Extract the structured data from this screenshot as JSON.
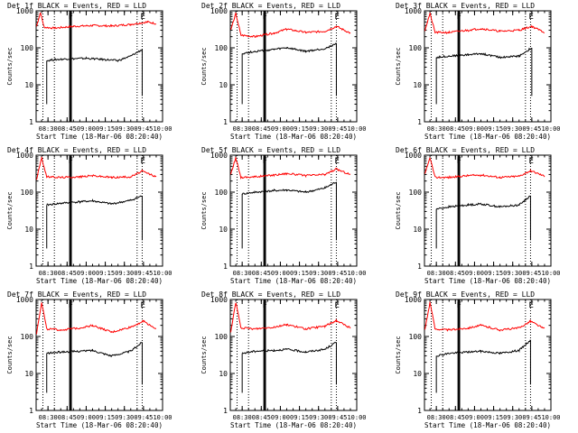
{
  "chart_data": [
    {
      "type": "line",
      "title": "Det 1f BLACK = Events, RED = LLD",
      "xlabel": "Start Time (18-Mar-06 08:20:40)",
      "ylabel": "Counts/sec",
      "y_scale": "log",
      "ylim": [
        1,
        1000
      ],
      "x_ticks": [
        "08:30",
        "08:45",
        "09:00",
        "09:15",
        "09:30",
        "09:45",
        "10:00"
      ],
      "y_ticks": [
        "1",
        "10",
        "100",
        "1000"
      ],
      "markers": [
        "F",
        "E"
      ],
      "series": [
        {
          "color": "#ff0000",
          "points": [
            [
              "08:21",
              380
            ],
            [
              "08:24",
              900
            ],
            [
              "08:27",
              360
            ],
            [
              "08:35",
              340
            ],
            [
              "08:50",
              380
            ],
            [
              "09:05",
              400
            ],
            [
              "09:20",
              390
            ],
            [
              "09:35",
              430
            ],
            [
              "09:48",
              500
            ],
            [
              "09:55",
              450
            ]
          ]
        },
        {
          "color": "#000000",
          "points": [
            [
              "08:29",
              45
            ],
            [
              "08:35",
              48
            ],
            [
              "08:45",
              50
            ],
            [
              "09:00",
              52
            ],
            [
              "09:15",
              48
            ],
            [
              "09:25",
              45
            ],
            [
              "09:35",
              60
            ],
            [
              "09:44",
              90
            ]
          ]
        }
      ]
    },
    {
      "type": "line",
      "title": "Det 2f BLACK = Events, RED = LLD",
      "xlabel": "Start Time (18-Mar-06 08:20:40)",
      "ylabel": "Counts/sec",
      "y_scale": "log",
      "ylim": [
        1,
        1000
      ],
      "x_ticks": [
        "08:30",
        "08:45",
        "09:00",
        "09:15",
        "09:30",
        "09:45",
        "10:00"
      ],
      "y_ticks": [
        "1",
        "10",
        "100",
        "1000"
      ],
      "markers": [
        "F",
        "E"
      ],
      "series": [
        {
          "color": "#ff0000",
          "points": [
            [
              "08:21",
              300
            ],
            [
              "08:25",
              850
            ],
            [
              "08:29",
              220
            ],
            [
              "08:40",
              200
            ],
            [
              "08:55",
              250
            ],
            [
              "09:05",
              320
            ],
            [
              "09:20",
              260
            ],
            [
              "09:35",
              280
            ],
            [
              "09:44",
              380
            ],
            [
              "09:55",
              250
            ]
          ]
        },
        {
          "color": "#000000",
          "points": [
            [
              "08:30",
              70
            ],
            [
              "08:40",
              80
            ],
            [
              "08:55",
              90
            ],
            [
              "09:05",
              100
            ],
            [
              "09:20",
              80
            ],
            [
              "09:35",
              95
            ],
            [
              "09:44",
              130
            ]
          ]
        }
      ]
    },
    {
      "type": "line",
      "title": "Det 3f BLACK = Events, RED = LLD",
      "xlabel": "Start Time (18-Mar-06 08:20:40)",
      "ylabel": "Counts/sec",
      "y_scale": "log",
      "ylim": [
        1,
        1000
      ],
      "x_ticks": [
        "08:30",
        "08:45",
        "09:00",
        "09:15",
        "09:30",
        "09:45",
        "10:00"
      ],
      "y_ticks": [
        "1",
        "10",
        "100",
        "1000"
      ],
      "markers": [
        "F",
        "E"
      ],
      "series": [
        {
          "color": "#ff0000",
          "points": [
            [
              "08:21",
              300
            ],
            [
              "08:25",
              850
            ],
            [
              "08:29",
              260
            ],
            [
              "08:40",
              260
            ],
            [
              "08:55",
              300
            ],
            [
              "09:05",
              330
            ],
            [
              "09:20",
              280
            ],
            [
              "09:35",
              300
            ],
            [
              "09:45",
              380
            ],
            [
              "09:55",
              260
            ]
          ]
        },
        {
          "color": "#000000",
          "points": [
            [
              "08:30",
              55
            ],
            [
              "08:40",
              60
            ],
            [
              "08:55",
              65
            ],
            [
              "09:05",
              70
            ],
            [
              "09:20",
              55
            ],
            [
              "09:35",
              60
            ],
            [
              "09:45",
              100
            ]
          ]
        }
      ]
    },
    {
      "type": "line",
      "title": "Det 4f BLACK = Events, RED = LLD",
      "xlabel": "Start Time (18-Mar-06 08:20:40)",
      "ylabel": "Counts/sec",
      "y_scale": "log",
      "ylim": [
        1,
        1000
      ],
      "x_ticks": [
        "08:30",
        "08:45",
        "09:00",
        "09:15",
        "09:30",
        "09:45",
        "10:00"
      ],
      "y_ticks": [
        "1",
        "10",
        "100",
        "1000"
      ],
      "markers": [
        "F",
        "E"
      ],
      "series": [
        {
          "color": "#ff0000",
          "points": [
            [
              "08:21",
              220
            ],
            [
              "08:25",
              850
            ],
            [
              "08:29",
              260
            ],
            [
              "08:40",
              250
            ],
            [
              "08:55",
              260
            ],
            [
              "09:05",
              280
            ],
            [
              "09:20",
              250
            ],
            [
              "09:35",
              260
            ],
            [
              "09:44",
              370
            ],
            [
              "09:55",
              260
            ]
          ]
        },
        {
          "color": "#000000",
          "points": [
            [
              "08:29",
              45
            ],
            [
              "08:40",
              50
            ],
            [
              "08:55",
              55
            ],
            [
              "09:05",
              58
            ],
            [
              "09:20",
              48
            ],
            [
              "09:35",
              60
            ],
            [
              "09:44",
              80
            ]
          ]
        }
      ]
    },
    {
      "type": "line",
      "title": "Det 5f BLACK = Events, RED = LLD",
      "xlabel": "Start Time (18-Mar-06 08:20:40)",
      "ylabel": "Counts/sec",
      "y_scale": "log",
      "ylim": [
        1,
        1000
      ],
      "x_ticks": [
        "08:30",
        "08:45",
        "09:00",
        "09:15",
        "09:30",
        "09:45",
        "10:00"
      ],
      "y_ticks": [
        "1",
        "10",
        "100",
        "1000"
      ],
      "markers": [
        "F",
        "E"
      ],
      "series": [
        {
          "color": "#ff0000",
          "points": [
            [
              "08:21",
              300
            ],
            [
              "08:25",
              850
            ],
            [
              "08:29",
              250
            ],
            [
              "08:40",
              260
            ],
            [
              "08:55",
              290
            ],
            [
              "09:05",
              320
            ],
            [
              "09:20",
              280
            ],
            [
              "09:35",
              300
            ],
            [
              "09:44",
              420
            ],
            [
              "09:55",
              300
            ]
          ]
        },
        {
          "color": "#000000",
          "points": [
            [
              "08:30",
              90
            ],
            [
              "08:40",
              100
            ],
            [
              "08:55",
              110
            ],
            [
              "09:05",
              115
            ],
            [
              "09:20",
              100
            ],
            [
              "09:35",
              130
            ],
            [
              "09:44",
              190
            ]
          ]
        }
      ]
    },
    {
      "type": "line",
      "title": "Det 6f BLACK = Events, RED = LLD",
      "xlabel": "Start Time (18-Mar-06 08:20:40)",
      "ylabel": "Counts/sec",
      "y_scale": "log",
      "ylim": [
        1,
        1000
      ],
      "x_ticks": [
        "08:30",
        "08:45",
        "09:00",
        "09:15",
        "09:30",
        "09:45",
        "10:00"
      ],
      "y_ticks": [
        "1",
        "10",
        "100",
        "1000"
      ],
      "markers": [
        "F",
        "E"
      ],
      "series": [
        {
          "color": "#ff0000",
          "points": [
            [
              "08:21",
              300
            ],
            [
              "08:25",
              850
            ],
            [
              "08:29",
              250
            ],
            [
              "08:40",
              250
            ],
            [
              "08:55",
              280
            ],
            [
              "09:05",
              290
            ],
            [
              "09:20",
              250
            ],
            [
              "09:35",
              270
            ],
            [
              "09:44",
              380
            ],
            [
              "09:55",
              270
            ]
          ]
        },
        {
          "color": "#000000",
          "points": [
            [
              "08:30",
              35
            ],
            [
              "08:40",
              40
            ],
            [
              "08:55",
              45
            ],
            [
              "09:05",
              48
            ],
            [
              "09:20",
              40
            ],
            [
              "09:35",
              45
            ],
            [
              "09:44",
              80
            ]
          ]
        }
      ]
    },
    {
      "type": "line",
      "title": "Det 7f BLACK = Events, RED = LLD",
      "xlabel": "Start Time (18-Mar-06 08:20:40)",
      "ylabel": "Counts/sec",
      "y_scale": "log",
      "ylim": [
        1,
        1000
      ],
      "x_ticks": [
        "08:30",
        "08:45",
        "09:00",
        "09:15",
        "09:30",
        "09:45",
        "10:00"
      ],
      "y_ticks": [
        "1",
        "10",
        "100",
        "1000"
      ],
      "markers": [
        "F",
        "E"
      ],
      "series": [
        {
          "color": "#ff0000",
          "points": [
            [
              "08:21",
              120
            ],
            [
              "08:25",
              850
            ],
            [
              "08:29",
              160
            ],
            [
              "08:40",
              150
            ],
            [
              "08:55",
              170
            ],
            [
              "09:05",
              200
            ],
            [
              "09:20",
              130
            ],
            [
              "09:35",
              180
            ],
            [
              "09:45",
              260
            ],
            [
              "09:55",
              160
            ]
          ]
        },
        {
          "color": "#000000",
          "points": [
            [
              "08:29",
              35
            ],
            [
              "08:40",
              38
            ],
            [
              "08:55",
              40
            ],
            [
              "09:05",
              42
            ],
            [
              "09:20",
              30
            ],
            [
              "09:35",
              40
            ],
            [
              "09:44",
              70
            ]
          ]
        }
      ]
    },
    {
      "type": "line",
      "title": "Det 8f BLACK = Events, RED = LLD",
      "xlabel": "Start Time (18-Mar-06 08:20:40)",
      "ylabel": "Counts/sec",
      "y_scale": "log",
      "ylim": [
        1,
        1000
      ],
      "x_ticks": [
        "08:30",
        "08:45",
        "09:00",
        "09:15",
        "09:30",
        "09:45",
        "10:00"
      ],
      "y_ticks": [
        "1",
        "10",
        "100",
        "1000"
      ],
      "markers": [
        "F",
        "E"
      ],
      "series": [
        {
          "color": "#ff0000",
          "points": [
            [
              "08:21",
              130
            ],
            [
              "08:25",
              850
            ],
            [
              "08:29",
              170
            ],
            [
              "08:40",
              160
            ],
            [
              "08:55",
              180
            ],
            [
              "09:05",
              210
            ],
            [
              "09:20",
              160
            ],
            [
              "09:35",
              190
            ],
            [
              "09:44",
              270
            ],
            [
              "09:55",
              170
            ]
          ]
        },
        {
          "color": "#000000",
          "points": [
            [
              "08:30",
              35
            ],
            [
              "08:40",
              40
            ],
            [
              "08:55",
              42
            ],
            [
              "09:05",
              45
            ],
            [
              "09:20",
              38
            ],
            [
              "09:35",
              45
            ],
            [
              "09:44",
              70
            ]
          ]
        }
      ]
    },
    {
      "type": "line",
      "title": "Det 9f BLACK = Events, RED = LLD",
      "xlabel": "Start Time (18-Mar-06 08:20:40)",
      "ylabel": "Counts/sec",
      "y_scale": "log",
      "ylim": [
        1,
        1000
      ],
      "x_ticks": [
        "08:30",
        "08:45",
        "09:00",
        "09:15",
        "09:30",
        "09:45",
        "10:00"
      ],
      "y_ticks": [
        "1",
        "10",
        "100",
        "1000"
      ],
      "markers": [
        "F",
        "E"
      ],
      "series": [
        {
          "color": "#ff0000",
          "points": [
            [
              "08:21",
              150
            ],
            [
              "08:25",
              850
            ],
            [
              "08:29",
              160
            ],
            [
              "08:40",
              150
            ],
            [
              "08:55",
              170
            ],
            [
              "09:05",
              200
            ],
            [
              "09:20",
              150
            ],
            [
              "09:35",
              170
            ],
            [
              "09:44",
              260
            ],
            [
              "09:55",
              160
            ]
          ]
        },
        {
          "color": "#000000",
          "points": [
            [
              "08:30",
              30
            ],
            [
              "08:40",
              35
            ],
            [
              "08:55",
              38
            ],
            [
              "09:05",
              40
            ],
            [
              "09:20",
              35
            ],
            [
              "09:35",
              42
            ],
            [
              "09:44",
              80
            ]
          ]
        }
      ]
    }
  ]
}
